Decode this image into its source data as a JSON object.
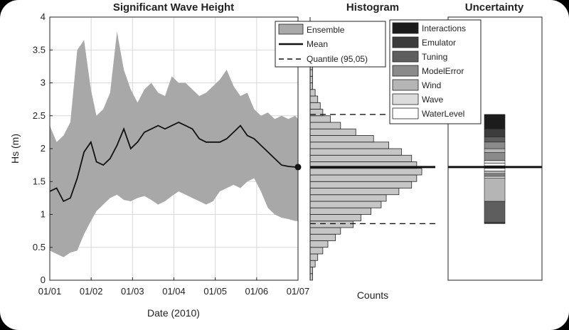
{
  "chart_data": [
    {
      "type": "area",
      "title": "Significant Wave Height",
      "xlabel": "Date (2010)",
      "ylabel": "Hs (m)",
      "x_tick_labels": [
        "01/01",
        "01/02",
        "01/03",
        "01/04",
        "01/05",
        "01/06",
        "01/07"
      ],
      "y_tick_labels": [
        "0",
        "0.5",
        "1",
        "1.5",
        "2",
        "2.5",
        "3",
        "3.5",
        "4"
      ],
      "ylim": [
        0,
        4
      ],
      "grid": true,
      "x": [
        "2010-01-01",
        "2010-01-06",
        "2010-01-11",
        "2010-01-16",
        "2010-01-21",
        "2010-01-26",
        "2010-01-31",
        "2010-02-04",
        "2010-02-09",
        "2010-02-14",
        "2010-02-19",
        "2010-02-24",
        "2010-03-01",
        "2010-03-06",
        "2010-03-11",
        "2010-03-16",
        "2010-03-21",
        "2010-03-26",
        "2010-03-31",
        "2010-04-05",
        "2010-04-10",
        "2010-04-15",
        "2010-04-20",
        "2010-04-25",
        "2010-04-30",
        "2010-05-05",
        "2010-05-10",
        "2010-05-15",
        "2010-05-20",
        "2010-05-25",
        "2010-05-30",
        "2010-06-04",
        "2010-06-09",
        "2010-06-14",
        "2010-06-19",
        "2010-06-24",
        "2010-06-29",
        "2010-07-01"
      ],
      "series": [
        {
          "name": "Ensemble",
          "kind": "band",
          "lower": [
            0.45,
            0.4,
            0.35,
            0.42,
            0.45,
            0.7,
            0.9,
            1.05,
            1.15,
            1.25,
            1.3,
            1.22,
            1.2,
            1.25,
            1.28,
            1.22,
            1.15,
            1.2,
            1.28,
            1.35,
            1.3,
            1.25,
            1.2,
            1.15,
            1.2,
            1.35,
            1.4,
            1.45,
            1.4,
            1.5,
            1.55,
            1.35,
            1.1,
            1.0,
            0.95,
            0.93,
            0.9,
            0.9
          ],
          "upper": [
            2.35,
            2.1,
            2.2,
            2.4,
            3.5,
            3.65,
            2.9,
            2.5,
            2.6,
            2.85,
            3.78,
            3.2,
            2.9,
            2.7,
            2.9,
            3.0,
            2.85,
            2.8,
            3.1,
            3.0,
            3.0,
            2.9,
            2.8,
            2.85,
            2.95,
            3.05,
            3.2,
            2.95,
            2.8,
            2.85,
            2.6,
            2.5,
            2.55,
            2.45,
            2.5,
            2.45,
            2.5,
            2.45
          ]
        },
        {
          "name": "Mean",
          "kind": "line",
          "values": [
            1.35,
            1.4,
            1.2,
            1.25,
            1.55,
            1.95,
            2.1,
            1.8,
            1.75,
            1.85,
            2.05,
            2.3,
            2.0,
            2.1,
            2.25,
            2.3,
            2.35,
            2.3,
            2.35,
            2.4,
            2.35,
            2.3,
            2.15,
            2.1,
            2.1,
            2.1,
            2.15,
            2.25,
            2.35,
            2.2,
            2.15,
            2.05,
            1.95,
            1.85,
            1.75,
            1.73,
            1.72,
            1.72
          ]
        }
      ],
      "end_marker_value": 1.72
    },
    {
      "type": "bar",
      "orientation": "horizontal",
      "title": "Histogram",
      "xlabel": "Counts",
      "bins": [
        0.1,
        0.2,
        0.3,
        0.4,
        0.5,
        0.6,
        0.7,
        0.8,
        0.9,
        1.0,
        1.1,
        1.2,
        1.3,
        1.4,
        1.5,
        1.6,
        1.7,
        1.8,
        1.9,
        2.0,
        2.1,
        2.2,
        2.3,
        2.4,
        2.5,
        2.6,
        2.7,
        2.8,
        2.9,
        3.0,
        3.1,
        3.2,
        3.3,
        3.4,
        3.5,
        3.6,
        3.7,
        3.8
      ],
      "counts": [
        1,
        1,
        2,
        3,
        5,
        7,
        10,
        12,
        17,
        20,
        24,
        28,
        30,
        35,
        40,
        42,
        44,
        42,
        40,
        36,
        31,
        25,
        18,
        12,
        8,
        5,
        4,
        3,
        2,
        1,
        1,
        1,
        1,
        0.5,
        0.5,
        0.5,
        0.5,
        0.5
      ],
      "lines": [
        {
          "name": "Mean",
          "value": 1.72
        },
        {
          "name": "Quantile (95,05)",
          "value": 2.52
        },
        {
          "name": "Quantile (95,05)",
          "value": 0.86
        }
      ]
    },
    {
      "type": "bar",
      "stacked": true,
      "title": "Uncertainty",
      "categories": [
        "WaterLevel",
        "Wave",
        "Wind",
        "ModelError",
        "Tuning",
        "Emulator",
        "Interactions"
      ],
      "segments": [
        {
          "name": "Emulator",
          "from": 0.86,
          "to": 0.88
        },
        {
          "name": "Tuning",
          "from": 0.88,
          "to": 1.2
        },
        {
          "name": "Wind",
          "from": 1.2,
          "to": 1.55
        },
        {
          "name": "Wave",
          "from": 1.55,
          "to": 1.58
        },
        {
          "name": "ModelError",
          "from": 1.58,
          "to": 1.62
        },
        {
          "name": "Wind",
          "from": 1.62,
          "to": 1.66
        },
        {
          "name": "WaterLevel",
          "from": 1.66,
          "to": 1.7
        },
        {
          "name": "Wave",
          "from": 1.7,
          "to": 1.74
        },
        {
          "name": "WaterLevel",
          "from": 1.74,
          "to": 1.78
        },
        {
          "name": "Wave",
          "from": 1.78,
          "to": 1.82
        },
        {
          "name": "ModelError",
          "from": 1.82,
          "to": 1.94
        },
        {
          "name": "Wind",
          "from": 1.94,
          "to": 2.0
        },
        {
          "name": "ModelError",
          "from": 2.0,
          "to": 2.1
        },
        {
          "name": "Tuning",
          "from": 2.1,
          "to": 2.18
        },
        {
          "name": "Emulator",
          "from": 2.18,
          "to": 2.3
        },
        {
          "name": "Interactions",
          "from": 2.3,
          "to": 2.52
        }
      ],
      "mean_line": 1.72
    }
  ],
  "legends": {
    "main": [
      {
        "label": "Ensemble",
        "kind": "patch",
        "color": "#a9a9a9"
      },
      {
        "label": "Mean",
        "kind": "line"
      },
      {
        "label": "Quantile (95,05)",
        "kind": "dash"
      }
    ],
    "uncertainty": [
      {
        "label": "Interactions",
        "color": "#1c1c1c"
      },
      {
        "label": "Emulator",
        "color": "#3c3c3c"
      },
      {
        "label": "Tuning",
        "color": "#5e5e5e"
      },
      {
        "label": "ModelError",
        "color": "#8a8a8a"
      },
      {
        "label": "Wind",
        "color": "#b5b5b5"
      },
      {
        "label": "Wave",
        "color": "#dcdcdc"
      },
      {
        "label": "WaterLevel",
        "color": "#ffffff"
      }
    ]
  },
  "colors": {
    "band": "#a8a8a8",
    "hist_fill": "#c6c6c6",
    "grid": "#d8d8d8",
    "mean": "#111111"
  }
}
